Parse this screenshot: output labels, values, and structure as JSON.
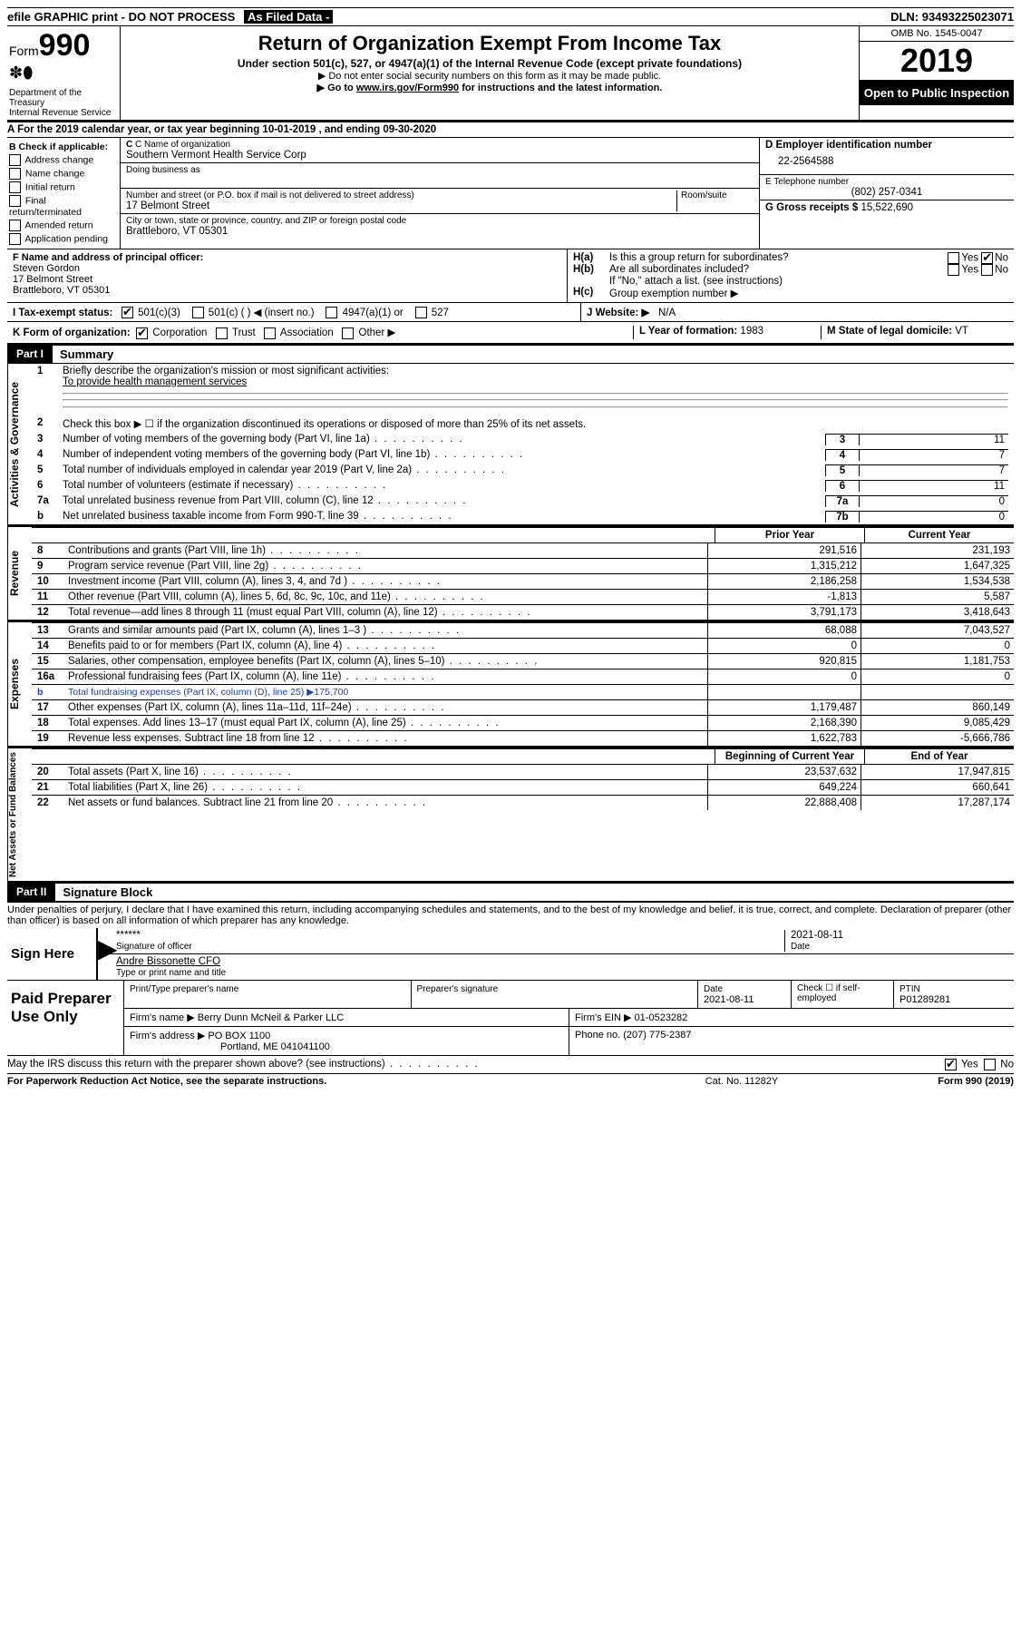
{
  "top": {
    "efile": "efile GRAPHIC print - DO NOT PROCESS",
    "asfiled_label": "As Filed Data - ",
    "dln_label": "DLN:",
    "dln": "93493225023071"
  },
  "header": {
    "form_prefix": "Form",
    "form_num": "990",
    "dept": "Department of the Treasury\nInternal Revenue Service",
    "title": "Return of Organization Exempt From Income Tax",
    "subtitle": "Under section 501(c), 527, or 4947(a)(1) of the Internal Revenue Code (except private foundations)",
    "note1": "▶ Do not enter social security numbers on this form as it may be made public.",
    "note2_pre": "▶ Go to ",
    "note2_link": "www.irs.gov/Form990",
    "note2_post": " for instructions and the latest information.",
    "omb": "OMB No. 1545-0047",
    "year": "2019",
    "open": "Open to Public Inspection"
  },
  "rowA": "A   For the 2019 calendar year, or tax year beginning 10-01-2019   , and ending 09-30-2020",
  "colB": {
    "title": "B Check if applicable:",
    "opts": [
      "Address change",
      "Name change",
      "Initial return",
      "Final return/terminated",
      "Amended return",
      "Application pending"
    ]
  },
  "colC": {
    "name_lbl": "C Name of organization",
    "name": "Southern Vermont Health Service Corp",
    "dba_lbl": "Doing business as",
    "addr_lbl": "Number and street (or P.O. box if mail is not delivered to street address)",
    "room_lbl": "Room/suite",
    "addr": "17 Belmont Street",
    "city_lbl": "City or town, state or province, country, and ZIP or foreign postal code",
    "city": "Brattleboro, VT  05301"
  },
  "colD": {
    "ein_lbl": "D Employer identification number",
    "ein": "22-2564588",
    "tel_lbl": "E Telephone number",
    "tel": "(802) 257-0341",
    "gross_lbl": "G Gross receipts $",
    "gross": "15,522,690"
  },
  "cellF": {
    "lbl": "F  Name and address of principal officer:",
    "name": "Steven Gordon",
    "addr1": "17 Belmont Street",
    "addr2": "Brattleboro, VT  05301"
  },
  "cellH": {
    "ha": "H(a)",
    "ha_txt": "Is this a group return for subordinates?",
    "hb": "H(b)",
    "hb_txt": "Are all subordinates included?",
    "hb_note": "If \"No,\" attach a list. (see instructions)",
    "hc": "H(c)",
    "hc_txt": "Group exemption number ▶",
    "yes": "Yes",
    "no": "No"
  },
  "rowI": {
    "lbl": "I   Tax-exempt status:",
    "o1": "501(c)(3)",
    "o2": "501(c) (   ) ◀ (insert no.)",
    "o3": "4947(a)(1) or",
    "o4": "527"
  },
  "rowJ": {
    "lbl": "J   Website: ▶",
    "val": "N/A"
  },
  "rowK": {
    "lbl": "K Form of organization:",
    "o1": "Corporation",
    "o2": "Trust",
    "o3": "Association",
    "o4": "Other ▶",
    "L_lbl": "L Year of formation:",
    "L_val": "1983",
    "M_lbl": "M State of legal domicile:",
    "M_val": "VT"
  },
  "part1": {
    "tag": "Part I",
    "title": "Summary"
  },
  "activities": {
    "side": "Activities & Governance",
    "q1": "Briefly describe the organization's mission or most significant activities:",
    "q1_ans": "To provide health management services",
    "q2": "Check this box ▶ ☐  if the organization discontinued its operations or disposed of more than 25% of its net assets.",
    "rows": [
      {
        "n": "3",
        "t": "Number of voting members of the governing body (Part VI, line 1a)",
        "box": "3",
        "v": "11"
      },
      {
        "n": "4",
        "t": "Number of independent voting members of the governing body (Part VI, line 1b)",
        "box": "4",
        "v": "7"
      },
      {
        "n": "5",
        "t": "Total number of individuals employed in calendar year 2019 (Part V, line 2a)",
        "box": "5",
        "v": "7"
      },
      {
        "n": "6",
        "t": "Total number of volunteers (estimate if necessary)",
        "box": "6",
        "v": "11"
      },
      {
        "n": "7a",
        "t": "Total unrelated business revenue from Part VIII, column (C), line 12",
        "box": "7a",
        "v": "0"
      },
      {
        "n": "b",
        "t": "Net unrelated business taxable income from Form 990-T, line 39",
        "box": "7b",
        "v": "0"
      }
    ]
  },
  "revenue": {
    "side": "Revenue",
    "h1": "Prior Year",
    "h2": "Current Year",
    "rows": [
      {
        "n": "8",
        "t": "Contributions and grants (Part VIII, line 1h)",
        "p": "291,516",
        "c": "231,193"
      },
      {
        "n": "9",
        "t": "Program service revenue (Part VIII, line 2g)",
        "p": "1,315,212",
        "c": "1,647,325"
      },
      {
        "n": "10",
        "t": "Investment income (Part VIII, column (A), lines 3, 4, and 7d )",
        "p": "2,186,258",
        "c": "1,534,538"
      },
      {
        "n": "11",
        "t": "Other revenue (Part VIII, column (A), lines 5, 6d, 8c, 9c, 10c, and 11e)",
        "p": "-1,813",
        "c": "5,587"
      },
      {
        "n": "12",
        "t": "Total revenue—add lines 8 through 11 (must equal Part VIII, column (A), line 12)",
        "p": "3,791,173",
        "c": "3,418,643"
      }
    ]
  },
  "expenses": {
    "side": "Expenses",
    "rows": [
      {
        "n": "13",
        "t": "Grants and similar amounts paid (Part IX, column (A), lines 1–3 )",
        "p": "68,088",
        "c": "7,043,527"
      },
      {
        "n": "14",
        "t": "Benefits paid to or for members (Part IX, column (A), line 4)",
        "p": "0",
        "c": "0"
      },
      {
        "n": "15",
        "t": "Salaries, other compensation, employee benefits (Part IX, column (A), lines 5–10)",
        "p": "920,815",
        "c": "1,181,753"
      },
      {
        "n": "16a",
        "t": "Professional fundraising fees (Part IX, column (A), line 11e)",
        "p": "0",
        "c": "0"
      },
      {
        "n": "b",
        "t": "Total fundraising expenses (Part IX, column (D), line 25) ▶175,700",
        "p": "",
        "c": "",
        "blue": true
      },
      {
        "n": "17",
        "t": "Other expenses (Part IX, column (A), lines 11a–11d, 11f–24e)",
        "p": "1,179,487",
        "c": "860,149"
      },
      {
        "n": "18",
        "t": "Total expenses. Add lines 13–17 (must equal Part IX, column (A), line 25)",
        "p": "2,168,390",
        "c": "9,085,429"
      },
      {
        "n": "19",
        "t": "Revenue less expenses. Subtract line 18 from line 12",
        "p": "1,622,783",
        "c": "-5,666,786"
      }
    ]
  },
  "netassets": {
    "side": "Net Assets or Fund Balances",
    "h1": "Beginning of Current Year",
    "h2": "End of Year",
    "rows": [
      {
        "n": "20",
        "t": "Total assets (Part X, line 16)",
        "p": "23,537,632",
        "c": "17,947,815"
      },
      {
        "n": "21",
        "t": "Total liabilities (Part X, line 26)",
        "p": "649,224",
        "c": "660,641"
      },
      {
        "n": "22",
        "t": "Net assets or fund balances. Subtract line 21 from line 20",
        "p": "22,888,408",
        "c": "17,287,174"
      }
    ]
  },
  "part2": {
    "tag": "Part II",
    "title": "Signature Block"
  },
  "perjury": "Under penalties of perjury, I declare that I have examined this return, including accompanying schedules and statements, and to the best of my knowledge and belief, it is true, correct, and complete. Declaration of preparer (other than officer) is based on all information of which preparer has any knowledge.",
  "sign": {
    "lbl": "Sign Here",
    "stars": "******",
    "sig_lbl": "Signature of officer",
    "date": "2021-08-11",
    "date_lbl": "Date",
    "name": "Andre Bissonette CFO",
    "name_lbl": "Type or print name and title"
  },
  "prep": {
    "lbl": "Paid Preparer Use Only",
    "c1": "Print/Type preparer's name",
    "c2": "Preparer's signature",
    "c3": "Date",
    "c3v": "2021-08-11",
    "c4": "Check ☐ if self-employed",
    "c5": "PTIN",
    "c5v": "P01289281",
    "firm_lbl": "Firm's name   ▶",
    "firm": "Berry Dunn McNeil & Parker LLC",
    "ein_lbl": "Firm's EIN ▶",
    "ein": "01-0523282",
    "addr_lbl": "Firm's address ▶",
    "addr": "PO BOX 1100",
    "addr2": "Portland, ME  041041100",
    "phone_lbl": "Phone no.",
    "phone": "(207) 775-2387"
  },
  "bottom": {
    "q": "May the IRS discuss this return with the preparer shown above? (see instructions)",
    "yes": "Yes",
    "no": "No"
  },
  "footer": {
    "l": "For Paperwork Reduction Act Notice, see the separate instructions.",
    "c": "Cat. No. 11282Y",
    "r": "Form 990 (2019)"
  }
}
